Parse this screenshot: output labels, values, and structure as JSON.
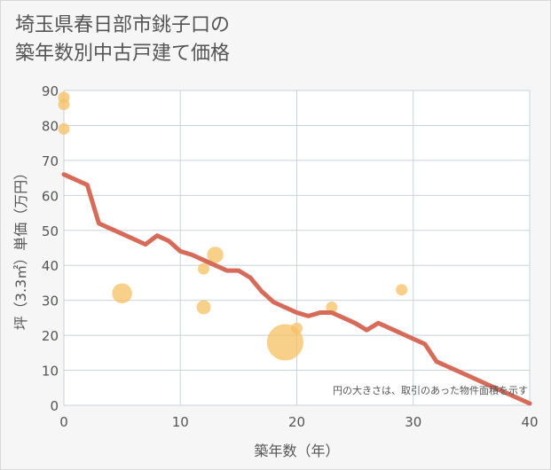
{
  "title_line1": "埼玉県春日部市銚子口の",
  "title_line2": "築年数別中古戸建て価格",
  "colors": {
    "background": "#f6f6f6",
    "plot_background": "#ffffff",
    "grid": "#c9d3dc",
    "bubble": "#f5c063",
    "trend_line": "#d66b5a",
    "text": "#555555"
  },
  "chart_data": {
    "type": "scatter",
    "title": "埼玉県春日部市銚子口の築年数別中古戸建て価格",
    "xlabel": "築年数（年）",
    "ylabel": "坪（3.3㎡）単価（万円）",
    "xlim": [
      0,
      40
    ],
    "ylim": [
      0,
      90
    ],
    "x_ticks": [
      "0",
      "10",
      "20",
      "30",
      "40"
    ],
    "y_ticks": [
      "0",
      "10",
      "20",
      "30",
      "40",
      "50",
      "60",
      "70",
      "80",
      "90"
    ],
    "x_tick_values": [
      0,
      10,
      20,
      30,
      40
    ],
    "y_tick_values": [
      0,
      10,
      20,
      30,
      40,
      50,
      60,
      70,
      80,
      90
    ],
    "grid": true,
    "note": "円の大きさは、取引のあった物件面積を示す",
    "scatter_points": [
      {
        "x": 0,
        "y": 88,
        "size": 1
      },
      {
        "x": 0,
        "y": 86,
        "size": 1
      },
      {
        "x": 0,
        "y": 79,
        "size": 1
      },
      {
        "x": 5,
        "y": 32,
        "size": 3
      },
      {
        "x": 12,
        "y": 39,
        "size": 1
      },
      {
        "x": 12,
        "y": 28,
        "size": 1.5
      },
      {
        "x": 13,
        "y": 43,
        "size": 2
      },
      {
        "x": 19,
        "y": 18,
        "size": 10
      },
      {
        "x": 20,
        "y": 22,
        "size": 1
      },
      {
        "x": 23,
        "y": 28,
        "size": 1
      },
      {
        "x": 29,
        "y": 33,
        "size": 1
      }
    ],
    "trend_line": {
      "x": [
        0,
        2,
        3,
        4,
        5,
        6,
        7,
        8,
        9,
        10,
        11,
        12,
        13,
        14,
        15,
        16,
        17,
        18,
        19,
        20,
        21,
        22,
        23,
        24,
        25,
        26,
        27,
        28,
        29,
        30,
        31,
        32,
        33,
        34,
        35,
        36,
        37,
        38,
        39,
        40
      ],
      "y": [
        66,
        63,
        52,
        50.5,
        49,
        47.5,
        46,
        48.5,
        47,
        44,
        43,
        41.5,
        40,
        38.5,
        38.5,
        36.5,
        32.5,
        29.5,
        28,
        26.5,
        25.5,
        26.5,
        26.5,
        25,
        23.5,
        21.5,
        23.5,
        22,
        20.5,
        19,
        17.5,
        12.5,
        11,
        9.5,
        8,
        6.5,
        5,
        3.5,
        2,
        0.5
      ]
    }
  }
}
